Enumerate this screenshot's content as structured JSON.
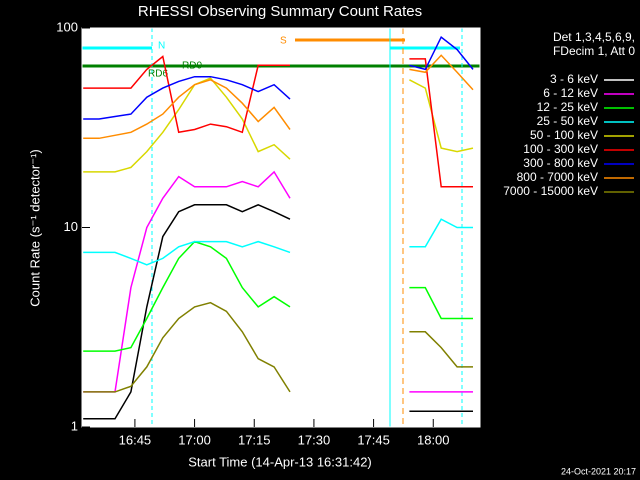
{
  "chart_data": {
    "type": "line",
    "title": "RHESSI Observing Summary Count Rates",
    "xlabel": "Start Time (14-Apr-13 16:31:42)",
    "ylabel": "Count Rate (s⁻¹ detector⁻¹)",
    "legend_header": [
      "Det 1,3,4,5,6,9,",
      "FDecim 1, Att 0"
    ],
    "footer": "24-Oct-2021 20:17",
    "annotations": [
      "N",
      "RD0",
      "RD6",
      "S"
    ],
    "log_y": true,
    "legend": "right",
    "xlim": [
      "16:31:42",
      "18:11:45"
    ],
    "xticks": [
      "16:45",
      "17:00",
      "17:15",
      "17:30",
      "17:45",
      "18:00"
    ],
    "ylim": [
      1,
      100
    ],
    "yticks": [
      1,
      10,
      100
    ],
    "x": [
      "16:32",
      "16:36",
      "16:40",
      "16:44",
      "16:48",
      "16:52",
      "16:56",
      "17:00",
      "17:04",
      "17:08",
      "17:12",
      "17:16",
      "17:20",
      "17:24",
      "17:40",
      "17:54",
      "17:58",
      "18:02",
      "18:06",
      "18:10"
    ],
    "series": [
      {
        "name": "3 - 6 keV",
        "color": "#000000",
        "values": [
          1.1,
          1.1,
          1.1,
          1.5,
          4,
          9,
          12,
          13,
          13,
          13,
          12,
          13,
          12,
          11,
          null,
          1.2,
          1.2,
          1.2,
          1.2,
          1.2
        ]
      },
      {
        "name": "6 - 12 keV",
        "color": "#ff00ff",
        "values": [
          1.5,
          1.5,
          1.5,
          5,
          10,
          14,
          18,
          16,
          16,
          16,
          17,
          16,
          19,
          14,
          null,
          1.5,
          1.5,
          1.5,
          1.5,
          1.5
        ]
      },
      {
        "name": "12 - 25 keV",
        "color": "#00ff00",
        "values": [
          2.4,
          2.4,
          2.4,
          2.5,
          3.5,
          5,
          7,
          8.5,
          8,
          7,
          5,
          4,
          4.5,
          4,
          null,
          5,
          5,
          3.5,
          3.5,
          3.5
        ]
      },
      {
        "name": "25 - 50 keV",
        "color": "#00ffff",
        "values": [
          7.5,
          7.5,
          7.5,
          7,
          6.5,
          7,
          8,
          8.5,
          8.5,
          8.5,
          8,
          8.5,
          8,
          7.5,
          null,
          8,
          8,
          11,
          10,
          10
        ]
      },
      {
        "name": "50 - 100 keV",
        "color": "#d8d800",
        "values": [
          19,
          19,
          19,
          20,
          24,
          30,
          39,
          52,
          56,
          45,
          35,
          24,
          26,
          22,
          null,
          55,
          50,
          25,
          24,
          25
        ]
      },
      {
        "name": "100 - 300 keV",
        "color": "#ff0000",
        "values": [
          50,
          50,
          50,
          50,
          62,
          72,
          30,
          31,
          33,
          32,
          30,
          65,
          65,
          65,
          null,
          70,
          70,
          16,
          16,
          16
        ]
      },
      {
        "name": "300 - 800 keV",
        "color": "#0000ff",
        "values": [
          35,
          35,
          36,
          37,
          45,
          50,
          54,
          57,
          57,
          55,
          52,
          48,
          52,
          44,
          null,
          65,
          62,
          90,
          78,
          62
        ]
      },
      {
        "name": "800 - 7000 keV",
        "color": "#ff8c00",
        "values": [
          28,
          28,
          29,
          30,
          33,
          37,
          45,
          52,
          55,
          50,
          42,
          34,
          40,
          31,
          null,
          62,
          60,
          73,
          60,
          49
        ]
      },
      {
        "name": "7000 - 15000 keV",
        "color": "#808000",
        "values": [
          1.5,
          1.5,
          1.5,
          1.6,
          2,
          2.8,
          3.5,
          4,
          4.2,
          3.8,
          3,
          2.2,
          2,
          1.5,
          null,
          3,
          3,
          2.5,
          2,
          2
        ]
      }
    ]
  }
}
